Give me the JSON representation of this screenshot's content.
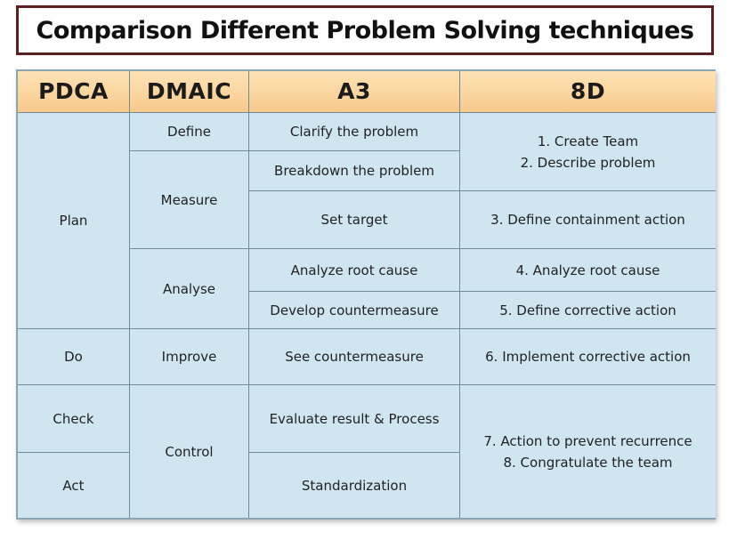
{
  "title": "Comparison Different Problem Solving techniques",
  "headers": {
    "pdca": "PDCA",
    "dmaic": "DMAIC",
    "a3": "A3",
    "eight_d": "8D"
  },
  "pdca": {
    "plan": "Plan",
    "do": "Do",
    "check": "Check",
    "act": "Act"
  },
  "dmaic": {
    "define": "Define",
    "measure": "Measure",
    "analyse": "Analyse",
    "improve": "Improve",
    "control": "Control"
  },
  "a3": {
    "clarify": "Clarify the problem",
    "breakdown": "Breakdown the problem",
    "target": "Set target",
    "root_cause": "Analyze root cause",
    "countermeasure": "Develop countermeasure",
    "see": "See countermeasure",
    "evaluate": "Evaluate result & Process",
    "standardize": "Standardization"
  },
  "eight_d": {
    "d1": "1. Create Team",
    "d2": "2. Describe problem",
    "d3": "3. Define containment action",
    "d4": "4. Analyze root cause",
    "d5": "5. Define corrective action",
    "d6": "6. Implement corrective action",
    "d7": "7. Action to prevent recurrence",
    "d8": "8. Congratulate the team"
  }
}
